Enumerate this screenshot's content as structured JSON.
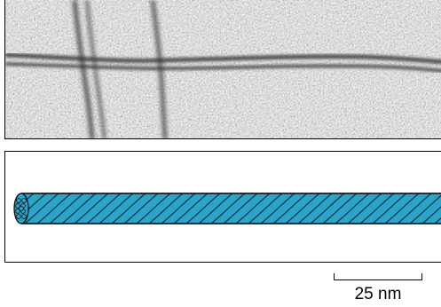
{
  "figure": {
    "micrograph": {
      "icon": "electron-micrograph-filament-texture"
    },
    "model": {
      "icon": "helical-filament-cylinder-icon",
      "fill_color": "#2aa4c8",
      "stripe_color": "#0a2530"
    },
    "scale_bar": {
      "label": "25 nm"
    }
  }
}
